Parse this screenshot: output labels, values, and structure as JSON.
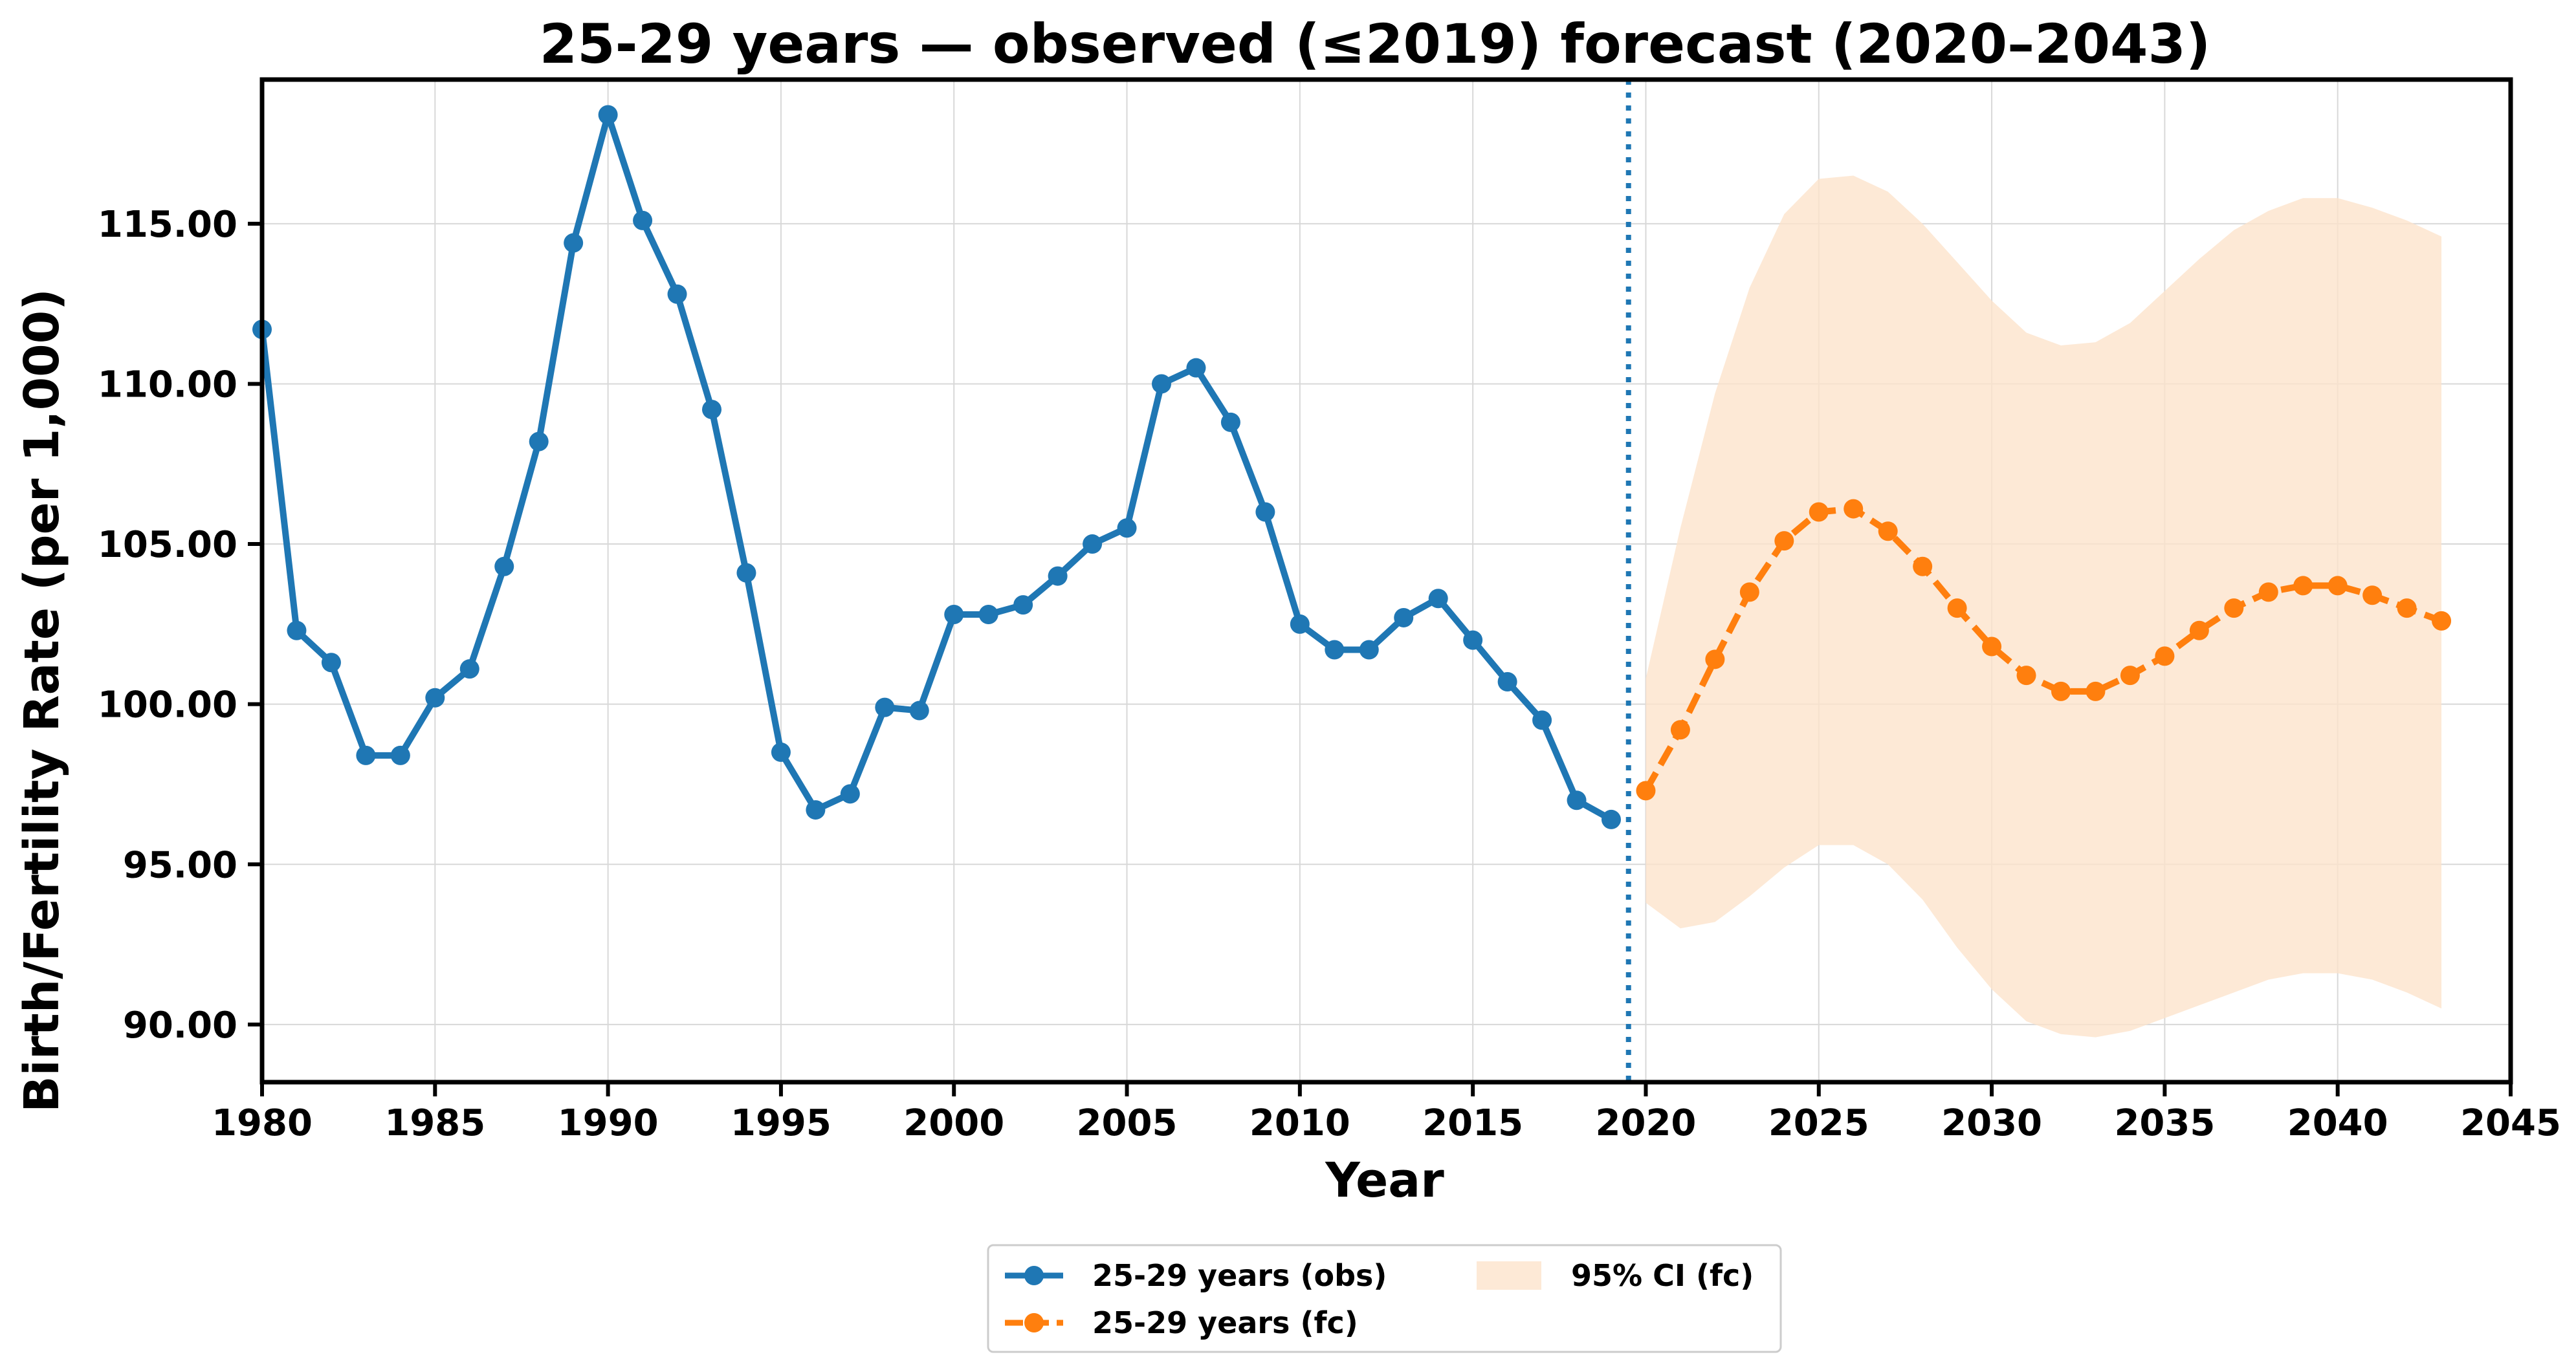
{
  "chart_data": {
    "type": "line",
    "title": "25-29 years — observed (≤2019) forecast (2020–2043)",
    "xlabel": "Year",
    "ylabel": "Birth/Fertility Rate (per 1,000)",
    "xlim": [
      1980,
      2045
    ],
    "ylim": [
      88.2,
      119.5
    ],
    "x_ticks": [
      1980,
      1985,
      1990,
      1995,
      2000,
      2005,
      2010,
      2015,
      2020,
      2025,
      2030,
      2035,
      2040,
      2045
    ],
    "x_tick_labels": [
      "1980",
      "1985",
      "1990",
      "1995",
      "2000",
      "2005",
      "2010",
      "2015",
      "2020",
      "2025",
      "2030",
      "2035",
      "2040",
      "2045"
    ],
    "y_ticks": [
      90,
      95,
      100,
      105,
      110,
      115
    ],
    "y_tick_labels": [
      "90.00",
      "95.00",
      "100.00",
      "105.00",
      "110.00",
      "115.00"
    ],
    "grid": true,
    "legend_position": "bottom-center",
    "forecast_start_marker": 2019.5,
    "colors": {
      "obs": "#1f77b4",
      "fc": "#ff7f0e",
      "ci": "#fde3cc",
      "vline": "#1f77b4"
    },
    "series": [
      {
        "name": "25-29 years (obs)",
        "style": "solid",
        "x": [
          1980,
          1981,
          1982,
          1983,
          1984,
          1985,
          1986,
          1987,
          1988,
          1989,
          1990,
          1991,
          1992,
          1993,
          1994,
          1995,
          1996,
          1997,
          1998,
          1999,
          2000,
          2001,
          2002,
          2003,
          2004,
          2005,
          2006,
          2007,
          2008,
          2009,
          2010,
          2011,
          2012,
          2013,
          2014,
          2015,
          2016,
          2017,
          2018,
          2019
        ],
        "values": [
          111.7,
          102.3,
          101.3,
          98.4,
          98.4,
          100.2,
          101.1,
          104.3,
          108.2,
          114.4,
          118.4,
          115.1,
          112.8,
          109.2,
          104.1,
          98.5,
          96.7,
          97.2,
          99.9,
          99.8,
          102.8,
          102.8,
          103.1,
          104.0,
          105.0,
          105.5,
          110.0,
          110.5,
          108.8,
          106.0,
          102.5,
          101.7,
          101.7,
          102.7,
          103.3,
          102.0,
          100.7,
          99.5,
          97.0,
          96.4
        ]
      },
      {
        "name": "25-29 years (fc)",
        "style": "dashed",
        "x": [
          2020,
          2021,
          2022,
          2023,
          2024,
          2025,
          2026,
          2027,
          2028,
          2029,
          2030,
          2031,
          2032,
          2033,
          2034,
          2035,
          2036,
          2037,
          2038,
          2039,
          2040,
          2041,
          2042,
          2043
        ],
        "values": [
          97.3,
          99.2,
          101.4,
          103.5,
          105.1,
          106.0,
          106.1,
          105.4,
          104.3,
          103.0,
          101.8,
          100.9,
          100.4,
          100.4,
          100.9,
          101.5,
          102.3,
          103.0,
          103.5,
          103.7,
          103.7,
          103.4,
          103.0,
          102.6
        ]
      }
    ],
    "ci": {
      "name": "95% CI (fc)",
      "x": [
        2020,
        2021,
        2022,
        2023,
        2024,
        2025,
        2026,
        2027,
        2028,
        2029,
        2030,
        2031,
        2032,
        2033,
        2034,
        2035,
        2036,
        2037,
        2038,
        2039,
        2040,
        2041,
        2042,
        2043
      ],
      "lower": [
        93.8,
        93.0,
        93.2,
        94.0,
        94.9,
        95.6,
        95.6,
        95.0,
        93.9,
        92.4,
        91.1,
        90.1,
        89.7,
        89.6,
        89.8,
        90.2,
        90.6,
        91.0,
        91.4,
        91.6,
        91.6,
        91.4,
        91.0,
        90.5
      ],
      "upper": [
        100.8,
        105.5,
        109.7,
        113.0,
        115.3,
        116.4,
        116.5,
        116.0,
        115.0,
        113.8,
        112.6,
        111.6,
        111.2,
        111.3,
        111.9,
        112.9,
        113.9,
        114.8,
        115.4,
        115.8,
        115.8,
        115.5,
        115.1,
        114.6
      ]
    }
  }
}
